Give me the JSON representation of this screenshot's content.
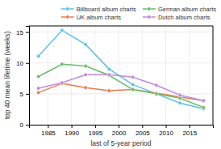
{
  "chart_data": {
    "type": "line",
    "x": [
      1983,
      1988,
      1993,
      1998,
      2003,
      2008,
      2013,
      2018
    ],
    "series": [
      {
        "name": "Billboard album charts",
        "color": "#5bbfe8",
        "values": [
          11.1,
          15.3,
          13.0,
          9.0,
          6.5,
          5.0,
          3.5,
          2.6
        ]
      },
      {
        "name": "UK album charts",
        "color": "#e8794a",
        "values": [
          5.2,
          6.7,
          6.0,
          5.5,
          5.7,
          5.1,
          4.5,
          3.9
        ]
      },
      {
        "name": "German album charts",
        "color": "#66bb66",
        "values": [
          7.8,
          9.8,
          9.5,
          8.0,
          5.7,
          5.0,
          4.3,
          2.8
        ]
      },
      {
        "name": "Dutch album charts",
        "color": "#bb88dd",
        "values": [
          5.9,
          6.8,
          8.1,
          8.1,
          7.7,
          6.4,
          4.8,
          3.9
        ]
      }
    ],
    "xlabel": "last of 5-year period",
    "ylabel": "top 40 mean lifetime (weeks)",
    "xlim": [
      1981,
      2020
    ],
    "ylim": [
      0,
      16
    ],
    "xticks": [
      1985,
      1990,
      1995,
      2000,
      2005,
      2010,
      2015
    ],
    "yticks": [
      0,
      5,
      10,
      15
    ],
    "grid": true,
    "legend": "upper right",
    "marker": "circle"
  }
}
